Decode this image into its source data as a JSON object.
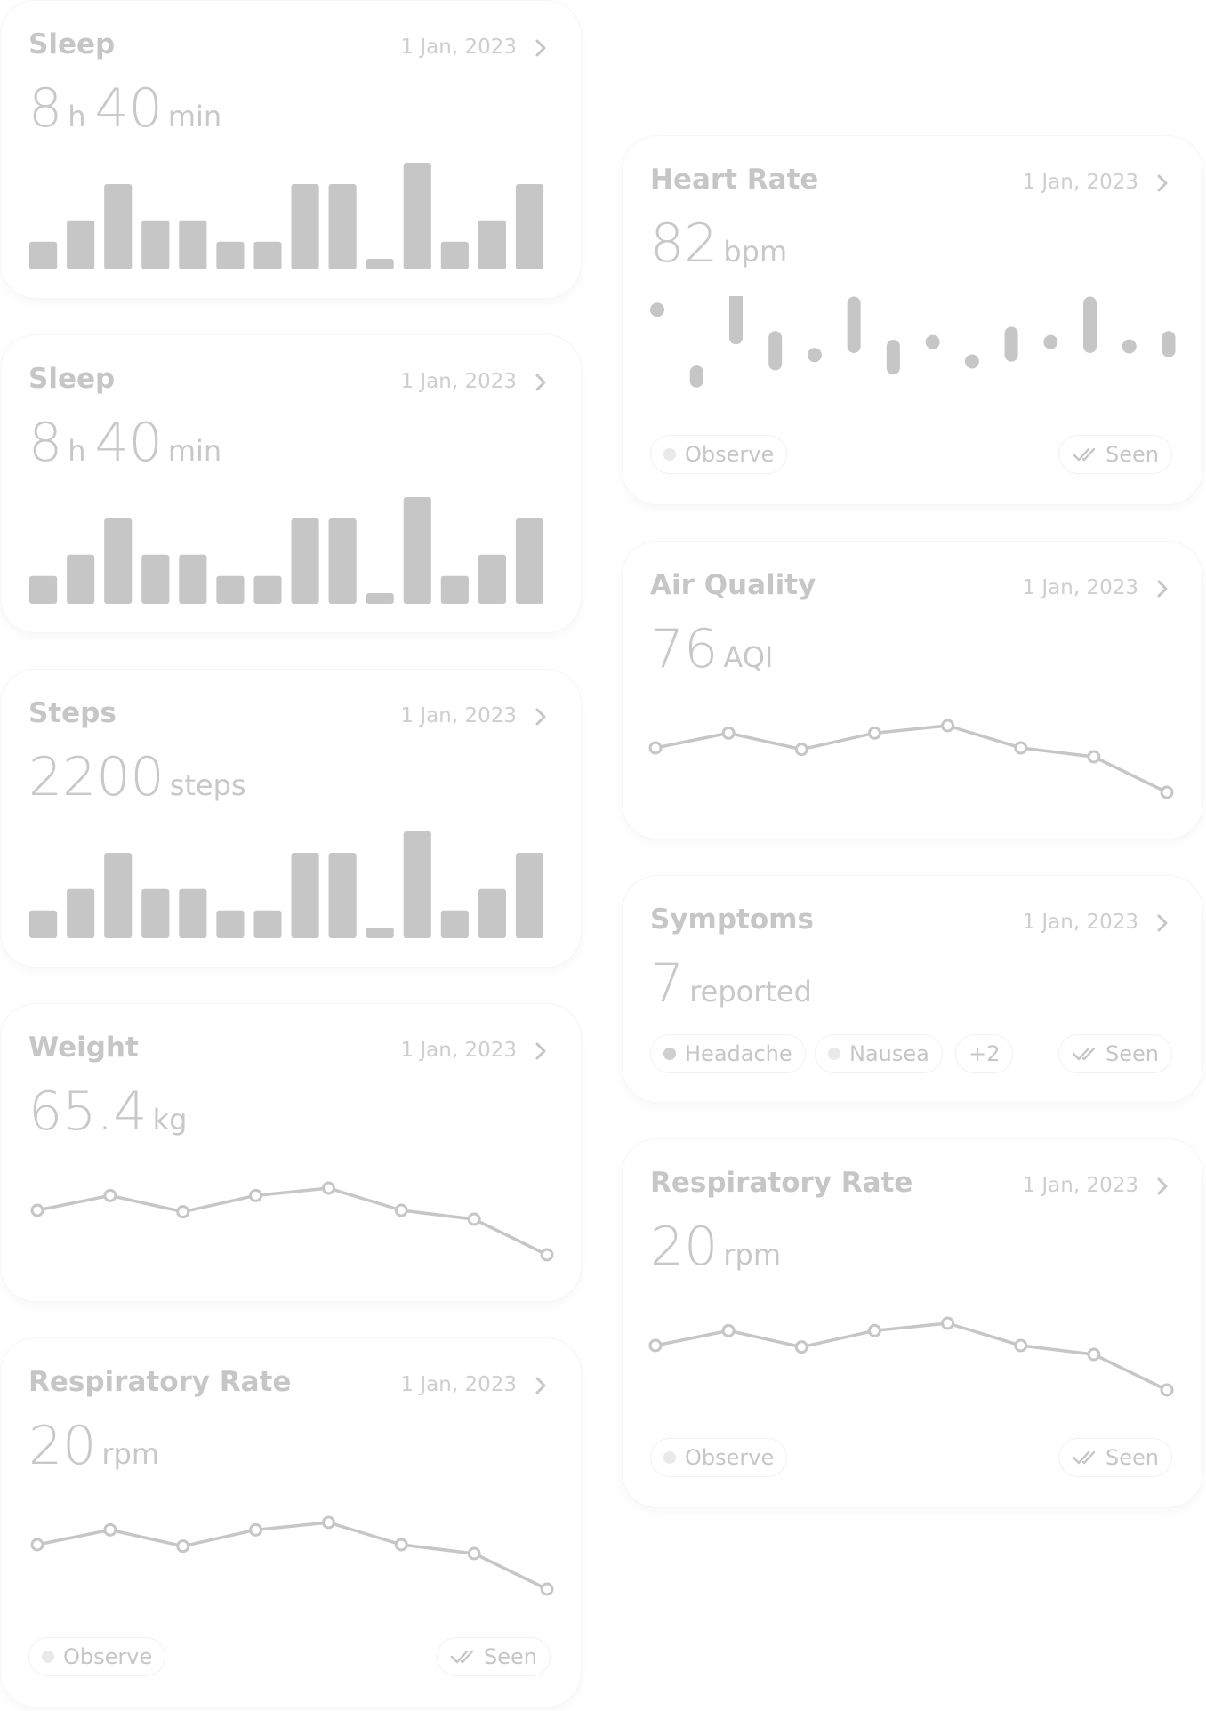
{
  "cards": {
    "sleep1": {
      "title": "Sleep",
      "date": "1 Jan, 2023",
      "v1": "8",
      "u1": "h",
      "v2": "40",
      "u2": "min",
      "chart_data": {
        "type": "bar",
        "values": [
          1.3,
          2.3,
          4,
          2.3,
          2.3,
          1.3,
          1.3,
          4,
          4,
          0.5,
          5,
          1.3,
          2.3,
          4
        ]
      }
    },
    "sleep2": {
      "title": "Sleep",
      "date": "1 Jan, 2023",
      "v1": "8",
      "u1": "h",
      "v2": "40",
      "u2": "min",
      "chart_data": {
        "type": "bar",
        "values": [
          1.3,
          2.3,
          4,
          2.3,
          2.3,
          1.3,
          1.3,
          4,
          4,
          0.5,
          5,
          1.3,
          2.3,
          4
        ]
      }
    },
    "steps": {
      "title": "Steps",
      "date": "1 Jan, 2023",
      "v1": "2200",
      "u1": "steps",
      "chart_data": {
        "type": "bar",
        "values": [
          1.3,
          2.3,
          4,
          2.3,
          2.3,
          1.3,
          1.3,
          4,
          4,
          0.5,
          5,
          1.3,
          2.3,
          4
        ]
      }
    },
    "weight": {
      "title": "Weight",
      "date": "1 Jan, 2023",
      "v1": "65.4",
      "u1": "kg",
      "chart_data": {
        "type": "line",
        "values": [
          3,
          2,
          3.1,
          2,
          1.5,
          3,
          3.6,
          6
        ]
      }
    },
    "resp_left": {
      "title": "Respiratory Rate",
      "date": "1 Jan, 2023",
      "v1": "20",
      "u1": "rpm",
      "chart_data": {
        "type": "line",
        "values": [
          3,
          2,
          3.1,
          2,
          1.5,
          3,
          3.6,
          6
        ]
      },
      "observe": "Observe",
      "seen": "Seen"
    },
    "heart": {
      "title": "Heart Rate",
      "date": "1 Jan, 2023",
      "v1": "82",
      "u1": "bpm",
      "chart_data": {
        "type": "range",
        "ranges": [
          [
            9,
            0.5
          ],
          [
            1,
            1
          ],
          [
            6,
            6
          ],
          [
            3,
            3
          ],
          [
            4,
            0
          ],
          [
            5,
            5
          ],
          [
            2.5,
            2.5
          ],
          [
            5.5,
            0
          ],
          [
            3,
            0.5
          ],
          [
            4,
            2.5
          ],
          [
            5.5,
            0
          ],
          [
            5,
            5
          ],
          [
            5,
            0
          ],
          [
            4.5,
            1.5
          ]
        ]
      },
      "observe": "Observe",
      "seen": "Seen"
    },
    "air": {
      "title": "Air Quality",
      "date": "1 Jan, 2023",
      "v1": "76",
      "u1": "AQI",
      "chart_data": {
        "type": "line",
        "values": [
          3,
          2,
          3.1,
          2,
          1.5,
          3,
          3.6,
          6
        ]
      }
    },
    "symptoms": {
      "title": "Symptoms",
      "date": "1 Jan, 2023",
      "v1": "7",
      "u1": "reported",
      "tags": [
        "Headache",
        "Nausea"
      ],
      "more": "+2",
      "seen": "Seen"
    },
    "resp_right": {
      "title": "Respiratory Rate",
      "date": "1 Jan, 2023",
      "v1": "20",
      "u1": "rpm",
      "chart_data": {
        "type": "line",
        "values": [
          3,
          2,
          3.1,
          2,
          1.5,
          3,
          3.6,
          6
        ]
      },
      "observe": "Observe",
      "seen": "Seen"
    }
  },
  "colors": {
    "mark": "#c6c6c6",
    "title": "#c6c6c6",
    "meta": "#cecece",
    "border": "#f6f6f6"
  },
  "icons": {
    "chevron": "chevron-right-icon",
    "seen": "double-check-icon"
  }
}
